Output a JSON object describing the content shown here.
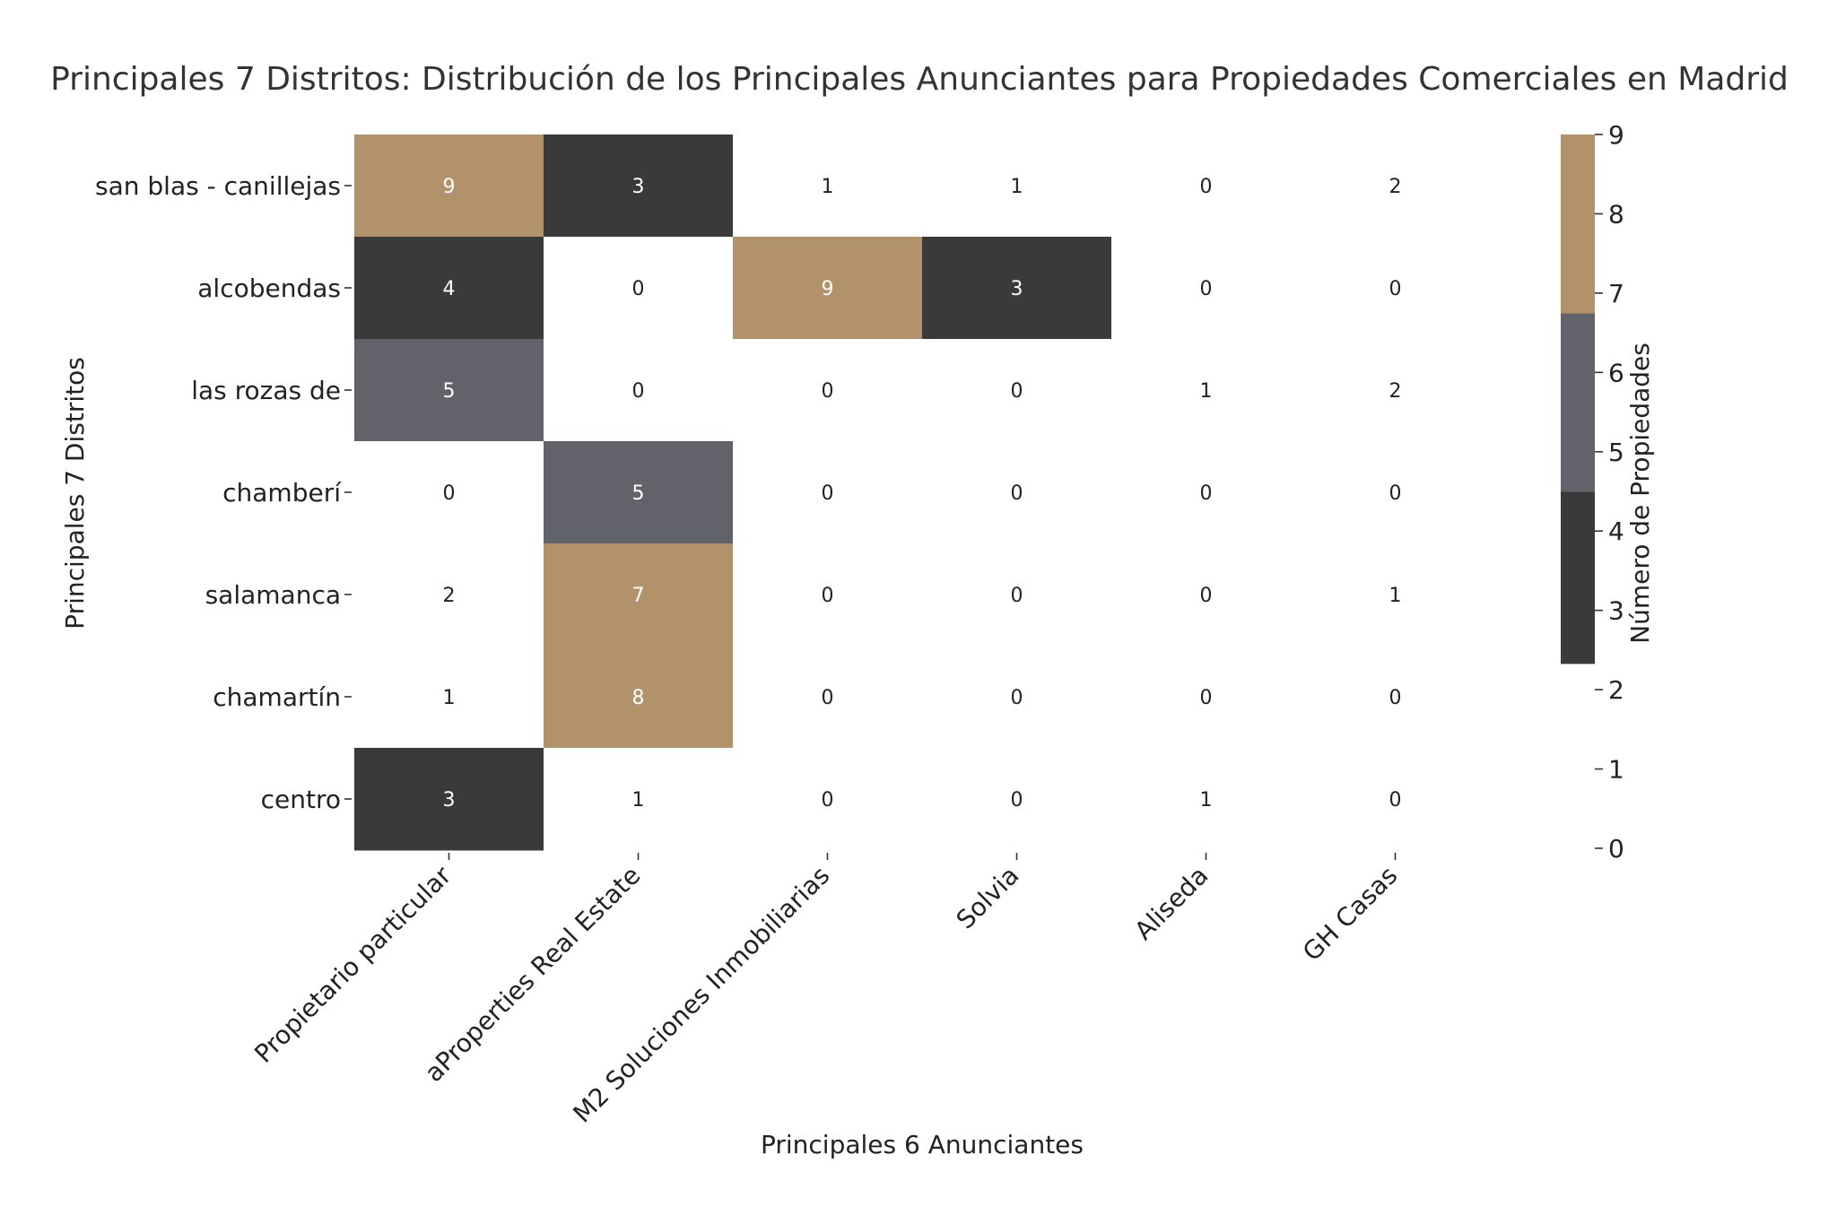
{
  "chart_data": {
    "type": "heatmap",
    "title": "Principales 7 Distritos: Distribución de los Principales Anunciantes para Propiedades Comerciales en Madrid",
    "xlabel": "Principales 6 Anunciantes",
    "ylabel": "Principales 7 Distritos",
    "x_categories": [
      "Propietario particular",
      "aProperties Real Estate",
      "M2 Soluciones Inmobiliarias",
      "Solvia",
      "Aliseda",
      "GH Casas"
    ],
    "y_categories": [
      "san blas - canillejas",
      "alcobendas",
      "las rozas de",
      "chamberí",
      "salamanca",
      "chamartín",
      "centro"
    ],
    "values": [
      [
        9,
        3,
        1,
        1,
        0,
        2
      ],
      [
        4,
        0,
        9,
        3,
        0,
        0
      ],
      [
        5,
        0,
        0,
        0,
        1,
        2
      ],
      [
        0,
        5,
        0,
        0,
        0,
        0
      ],
      [
        2,
        7,
        0,
        0,
        0,
        1
      ],
      [
        1,
        8,
        0,
        0,
        0,
        0
      ],
      [
        3,
        1,
        0,
        0,
        1,
        0
      ]
    ],
    "colorbar": {
      "label": "Número de Propiedades",
      "range": [
        0,
        9
      ],
      "ticks": [
        0,
        1,
        2,
        3,
        4,
        5,
        6,
        7,
        8,
        9
      ],
      "bins": [
        {
          "from": 2.33,
          "to": 4.5,
          "color": "#3a3a3a"
        },
        {
          "from": 4.5,
          "to": 6.75,
          "color": "#62626a"
        },
        {
          "from": 6.75,
          "to": 9,
          "color": "#b2926a"
        }
      ],
      "below_range_color": "#ffffff"
    },
    "text_colors": {
      "dark_cell": "#ffffff",
      "light_cell": "#222222"
    }
  }
}
